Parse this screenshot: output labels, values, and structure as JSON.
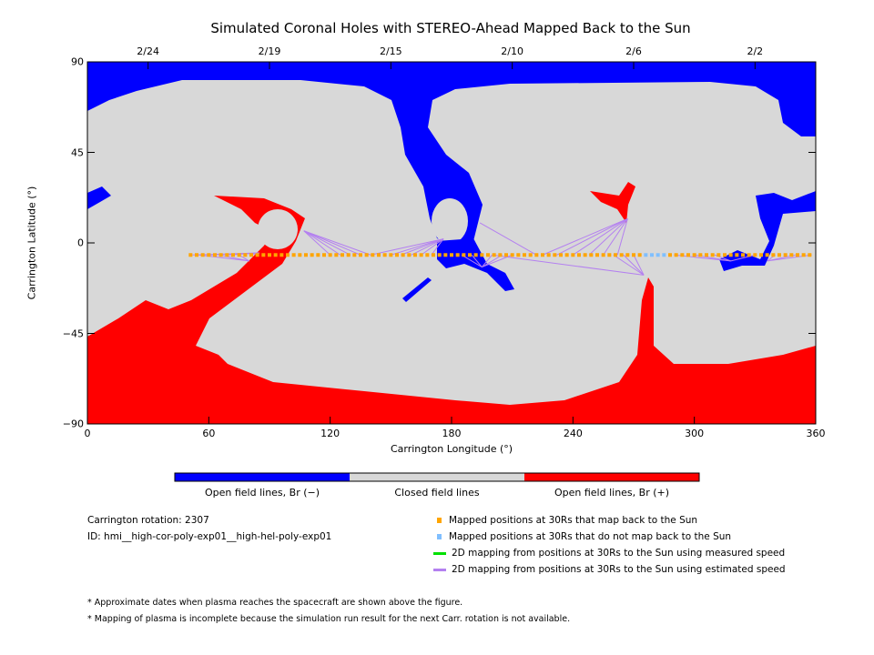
{
  "chart_data": {
    "type": "map",
    "title": "Simulated Coronal Holes with STEREO-Ahead Mapped Back to the Sun",
    "xlabel": "Carrington Longitude (°)",
    "ylabel": "Carrington Latitude (°)",
    "xlim": [
      0,
      360
    ],
    "ylim": [
      -90,
      90
    ],
    "xticks": [
      "0",
      "60",
      "120",
      "180",
      "240",
      "300",
      "360"
    ],
    "yticks": [
      "90",
      "45",
      "0",
      "-45",
      "-90"
    ],
    "top_date_ticks": [
      {
        "lon": 30,
        "label": "2/24"
      },
      {
        "lon": 90,
        "label": "2/19"
      },
      {
        "lon": 150,
        "label": "2/15"
      },
      {
        "lon": 210,
        "label": "2/10"
      },
      {
        "lon": 270,
        "label": "2/6"
      },
      {
        "lon": 330,
        "label": "2/2"
      }
    ],
    "colorbar": [
      {
        "label": "Open field lines, Br (−)",
        "color": "#0000ff"
      },
      {
        "label": "Closed field lines",
        "color": "#d8d8d8"
      },
      {
        "label": "Open field lines, Br (+)",
        "color": "#ff0000"
      }
    ],
    "mapped_back_lat": -6,
    "mapped_back_lons": [
      51,
      54,
      57,
      60,
      63,
      66,
      69,
      72,
      75,
      78,
      81,
      84,
      87,
      90,
      93,
      96,
      99,
      102,
      105,
      108,
      111,
      114,
      117,
      120,
      123,
      126,
      129,
      132,
      135,
      138,
      141,
      144,
      147,
      150,
      153,
      156,
      159,
      162,
      165,
      168,
      171,
      174,
      177,
      180,
      183,
      186,
      189,
      192,
      195,
      198,
      201,
      204,
      207,
      210,
      213,
      216,
      219,
      222,
      225,
      228,
      231,
      234,
      237,
      240,
      243,
      246,
      249,
      252,
      255,
      258,
      261,
      264,
      267,
      270,
      273,
      288,
      291,
      294,
      297,
      300,
      303,
      306,
      309,
      312,
      315,
      318,
      321,
      324,
      327,
      330,
      333,
      336,
      339,
      342,
      345,
      348,
      351,
      354,
      357
    ],
    "not_mapped_lons": [
      276,
      279,
      282,
      285
    ],
    "estimated_speed_lines": [
      {
        "foot": [
          107,
          6
        ],
        "from": [
          120,
          125,
          130,
          135,
          140
        ]
      },
      {
        "foot": [
          85,
          -5
        ],
        "from": [
          52,
          60,
          70,
          80
        ]
      },
      {
        "foot": [
          80,
          -9
        ],
        "from": [
          55,
          65,
          75
        ]
      },
      {
        "foot": [
          176,
          2
        ],
        "from": [
          140,
          150,
          155,
          160,
          165,
          170
        ]
      },
      {
        "foot": [
          195,
          -12
        ],
        "from": [
          185,
          190,
          200,
          205,
          210
        ]
      },
      {
        "foot": [
          194,
          10
        ],
        "from": [
          222
        ]
      },
      {
        "foot": [
          267,
          12
        ],
        "from": [
          225,
          232,
          240,
          248,
          255,
          262
        ]
      },
      {
        "foot": [
          275,
          -16
        ],
        "from": [
          200,
          260,
          265,
          270
        ]
      },
      {
        "foot": [
          318,
          -9
        ],
        "from": [
          290,
          300,
          310,
          330
        ]
      },
      {
        "foot": [
          336,
          -9
        ],
        "from": [
          340,
          350,
          358
        ]
      }
    ],
    "measured_speed_lines": []
  },
  "info": {
    "rotation": "Carrington rotation: 2307",
    "id": "ID: hmi__high-cor-poly-exp01__high-hel-poly-exp01"
  },
  "legend": [
    {
      "label": "Mapped positions at 30Rs that map back to the Sun",
      "color": "#ffa500",
      "kind": "square"
    },
    {
      "label": "Mapped positions at 30Rs that do not map back to the Sun",
      "color": "#80bfff",
      "kind": "square"
    },
    {
      "label": "2D mapping from positions at 30Rs to the Sun using measured speed",
      "color": "#00e000",
      "kind": "line"
    },
    {
      "label": "2D mapping from positions at 30Rs to the Sun using estimated speed",
      "color": "#b480f0",
      "kind": "line"
    }
  ],
  "notes": [
    "* Approximate dates when plasma reaches the spacecraft are shown above the figure.",
    "* Mapping of plasma is incomplete because the simulation run result for the next Carr. rotation is not available."
  ]
}
